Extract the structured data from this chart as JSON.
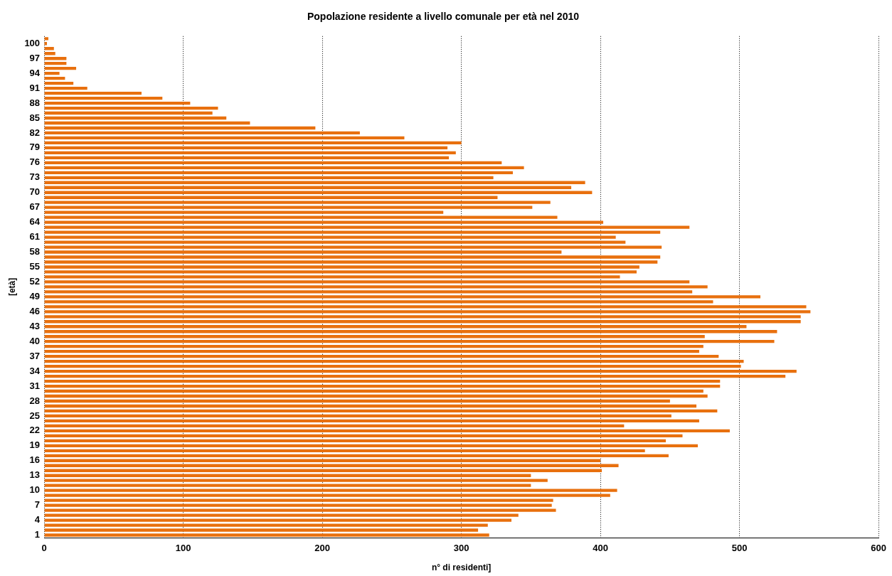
{
  "chart_data": {
    "type": "bar",
    "orientation": "horizontal",
    "title": "Popolazione residente a livello comunale per età nel 2010",
    "xlabel": "n° di residenti]",
    "ylabel": "[età]",
    "categories": [
      null,
      "100",
      null,
      null,
      "97",
      null,
      null,
      "94",
      null,
      null,
      "91",
      null,
      null,
      "88",
      null,
      null,
      "85",
      null,
      null,
      "82",
      null,
      null,
      "79",
      null,
      null,
      "76",
      null,
      null,
      "73",
      null,
      null,
      "70",
      null,
      null,
      "67",
      null,
      null,
      "64",
      null,
      null,
      "61",
      null,
      null,
      "58",
      null,
      null,
      "55",
      null,
      null,
      "52",
      null,
      null,
      "49",
      null,
      null,
      "46",
      null,
      null,
      "43",
      null,
      null,
      "40",
      null,
      null,
      "37",
      null,
      null,
      "34",
      null,
      null,
      "31",
      null,
      null,
      "28",
      null,
      null,
      "25",
      null,
      null,
      "22",
      null,
      null,
      "19",
      null,
      null,
      "16",
      null,
      null,
      "13",
      null,
      null,
      "10",
      null,
      null,
      "7",
      null,
      null,
      "4",
      null,
      null,
      "1"
    ],
    "values": [
      3,
      2,
      7,
      8,
      16,
      16,
      23,
      11,
      15,
      21,
      31,
      70,
      85,
      105,
      125,
      121,
      131,
      148,
      195,
      227,
      259,
      300,
      290,
      296,
      291,
      329,
      345,
      337,
      323,
      389,
      379,
      394,
      326,
      364,
      351,
      287,
      369,
      402,
      464,
      443,
      411,
      418,
      444,
      372,
      443,
      441,
      428,
      426,
      414,
      464,
      477,
      466,
      515,
      481,
      548,
      551,
      544,
      544,
      505,
      527,
      475,
      525,
      474,
      471,
      485,
      503,
      501,
      541,
      533,
      486,
      486,
      474,
      477,
      450,
      469,
      484,
      451,
      471,
      417,
      493,
      459,
      447,
      470,
      432,
      449,
      400,
      413,
      401,
      350,
      362,
      350,
      412,
      407,
      366,
      365,
      368,
      341,
      336,
      319,
      312,
      320
    ],
    "color": "#e8700e",
    "xlim": [
      0,
      600
    ],
    "xticks": [
      0,
      100,
      200,
      300,
      400,
      500,
      600
    ],
    "grid": "x",
    "legend": false
  }
}
